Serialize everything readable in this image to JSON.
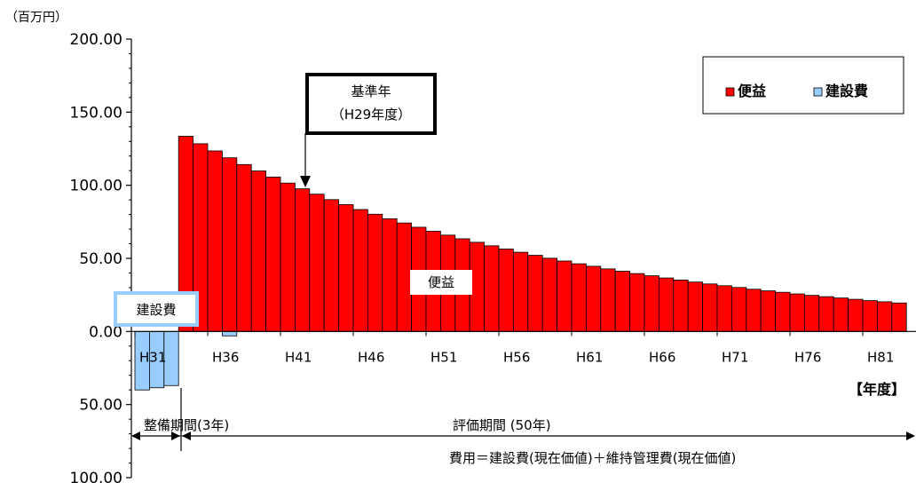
{
  "chart_data": {
    "type": "bar",
    "unit_label": "（百万円）",
    "x_axis_label": "【年度】",
    "ylim": [
      -100,
      200
    ],
    "y_ticks": [
      {
        "value": 200,
        "label": "200.00"
      },
      {
        "value": 150,
        "label": "150.00"
      },
      {
        "value": 100,
        "label": "100.00"
      },
      {
        "value": 50,
        "label": "50.00"
      },
      {
        "value": 0,
        "label": "0.00"
      },
      {
        "value": -50,
        "label": "50.00"
      },
      {
        "value": -100,
        "label": "100.00"
      }
    ],
    "x_ticks": [
      {
        "index": 0,
        "label": "H31"
      },
      {
        "index": 5,
        "label": "H36"
      },
      {
        "index": 10,
        "label": "H41"
      },
      {
        "index": 15,
        "label": "H46"
      },
      {
        "index": 20,
        "label": "H51"
      },
      {
        "index": 25,
        "label": "H56"
      },
      {
        "index": 30,
        "label": "H61"
      },
      {
        "index": 35,
        "label": "H66"
      },
      {
        "index": 40,
        "label": "H71"
      },
      {
        "index": 45,
        "label": "H76"
      },
      {
        "index": 50,
        "label": "H81"
      }
    ],
    "series": [
      {
        "name": "便益",
        "color": "#ff0000",
        "start_index": 3,
        "values": [
          133.5,
          128.4,
          123.5,
          118.8,
          114.2,
          109.8,
          105.6,
          101.5,
          97.6,
          93.9,
          90.2,
          86.8,
          83.4,
          80.2,
          77.1,
          74.2,
          71.3,
          68.6,
          65.9,
          63.4,
          61.0,
          58.6,
          56.4,
          54.2,
          52.1,
          50.1,
          48.2,
          46.3,
          44.6,
          42.8,
          41.2,
          39.6,
          38.1,
          36.6,
          35.2,
          33.8,
          32.5,
          31.3,
          30.1,
          28.9,
          27.8,
          26.8,
          25.7,
          24.7,
          23.8,
          22.9,
          22.0,
          21.1,
          20.3,
          19.5
        ]
      },
      {
        "name": "建設費",
        "color": "#99ccff",
        "start_index": 0,
        "values": [
          -40,
          -38.5,
          -37,
          0,
          0,
          0,
          -3
        ]
      }
    ]
  },
  "annotations": {
    "base_year_line1": "基準年",
    "base_year_line2": "（H29年度）",
    "benefit_label": "便益",
    "construction_label": "建設費",
    "maintenance_period": "整備期間(3年)",
    "evaluation_period": "評価期間 (50年)",
    "cost_formula": "費用＝建設費(現在価値)＋維持管理費(現在価値)"
  }
}
